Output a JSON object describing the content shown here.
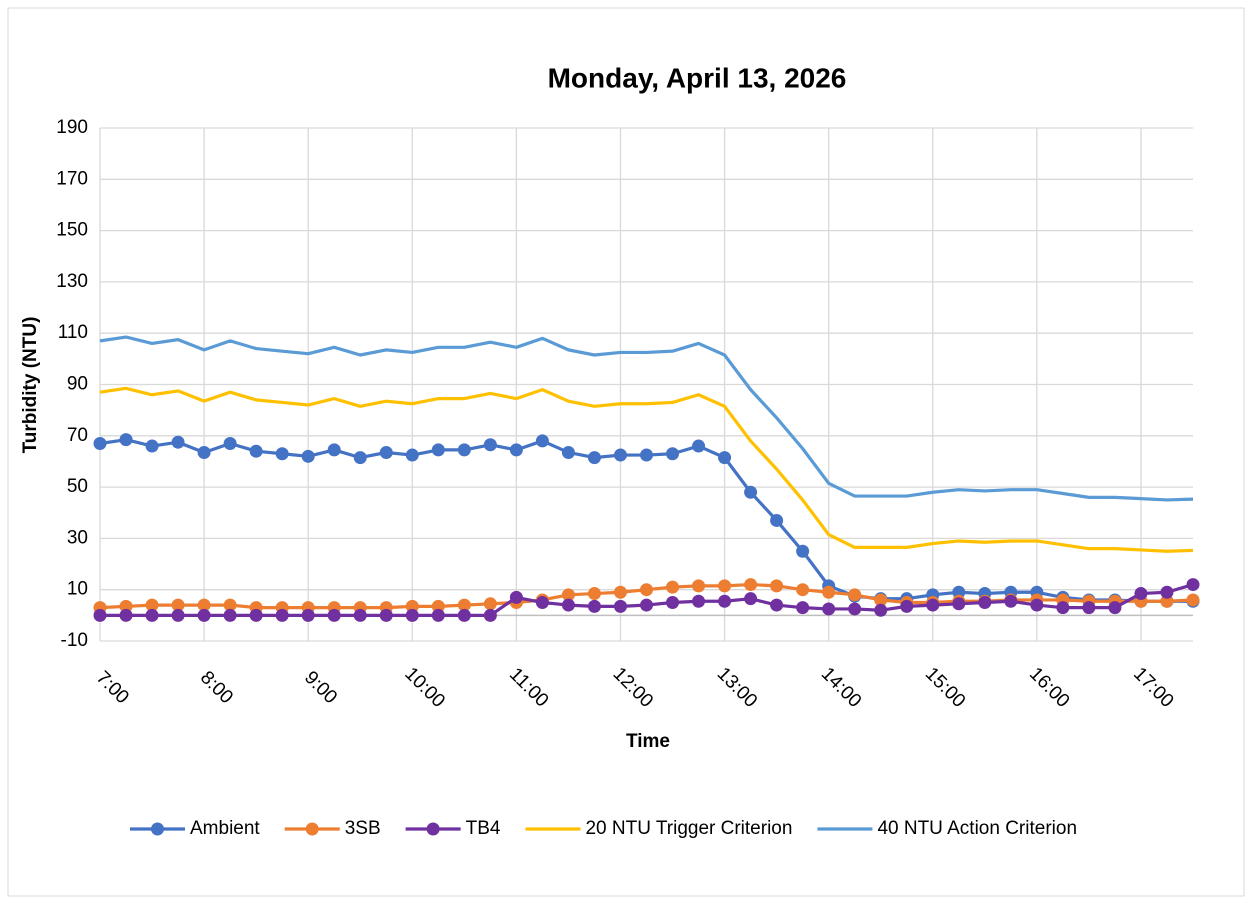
{
  "chart_data": {
    "type": "line",
    "title": "Monday, April 13, 2026",
    "x_label": "Time",
    "y_label": "Turbidity (NTU)",
    "categories": [
      "7:00",
      null,
      null,
      null,
      "8:00",
      null,
      null,
      null,
      "9:00",
      null,
      null,
      null,
      "10:00",
      null,
      null,
      null,
      "11:00",
      null,
      null,
      null,
      "12:00",
      null,
      null,
      null,
      "13:00",
      null,
      null,
      null,
      "14:00",
      null,
      null,
      null,
      "15:00",
      null,
      null,
      null,
      "16:00",
      null,
      null,
      null,
      "17:00",
      null,
      null
    ],
    "ylim": [
      -10,
      190
    ],
    "yticks": [
      -10,
      10,
      30,
      50,
      70,
      90,
      110,
      130,
      150,
      170,
      190
    ],
    "grid": true,
    "legend": "bottom",
    "series": [
      {
        "name": "Ambient",
        "color": "#4472c4",
        "markers": true,
        "values": [
          67,
          68.5,
          66,
          67.5,
          63.5,
          67,
          64,
          63,
          62,
          64.5,
          61.5,
          63.5,
          62.5,
          64.5,
          64.5,
          66.5,
          64.5,
          68,
          63.5,
          61.5,
          62.5,
          62.5,
          63,
          66,
          61.5,
          48,
          37,
          25,
          11.5,
          7.5,
          6.5,
          6.5,
          8,
          9,
          8.5,
          9,
          9,
          7,
          6,
          6,
          5.5,
          5.5,
          5.5
        ]
      },
      {
        "name": "3SB",
        "color": "#ed7d31",
        "markers": true,
        "values": [
          3,
          3.5,
          4,
          4,
          4,
          4,
          3,
          3,
          3,
          3,
          3,
          3,
          3.5,
          3.5,
          4,
          4.5,
          5,
          6,
          8,
          8.5,
          9,
          10,
          11,
          11.5,
          11.5,
          12,
          11.5,
          10,
          9,
          8,
          6,
          5,
          5,
          5.5,
          5.5,
          6,
          6,
          6,
          5.5,
          5.5,
          5.5,
          5.5,
          6
        ]
      },
      {
        "name": "TB4",
        "color": "#7030a0",
        "markers": true,
        "values": [
          0,
          0,
          0,
          0,
          0,
          0,
          0,
          0,
          0,
          0,
          0,
          0,
          0,
          0,
          0,
          0,
          7,
          5,
          4,
          3.5,
          3.5,
          4,
          5,
          5.5,
          5.5,
          6.5,
          4,
          3,
          2.5,
          2.5,
          2,
          3.5,
          4,
          4.5,
          5,
          5.5,
          4,
          3,
          3,
          3,
          8.5,
          9,
          12
        ]
      },
      {
        "name": "20 NTU Trigger Criterion",
        "color": "#ffc000",
        "markers": false,
        "values": [
          87,
          88.5,
          86,
          87.5,
          83.5,
          87,
          84,
          83,
          82,
          84.5,
          81.5,
          83.5,
          82.5,
          84.5,
          84.5,
          86.5,
          84.5,
          88,
          83.5,
          81.5,
          82.5,
          82.5,
          83,
          86,
          81.5,
          68,
          57,
          45,
          31.5,
          26.5,
          26.5,
          26.5,
          28,
          29,
          28.5,
          29,
          29,
          27.5,
          26,
          26,
          25.5,
          25,
          25.3
        ]
      },
      {
        "name": "40 NTU Action Criterion",
        "color": "#5b9bd5",
        "markers": false,
        "values": [
          107,
          108.5,
          106,
          107.5,
          103.5,
          107,
          104,
          103,
          102,
          104.5,
          101.5,
          103.5,
          102.5,
          104.5,
          104.5,
          106.5,
          104.5,
          108,
          103.5,
          101.5,
          102.5,
          102.5,
          103,
          106,
          101.5,
          88,
          77,
          65,
          51.5,
          46.5,
          46.5,
          46.5,
          48,
          49,
          48.5,
          49,
          49,
          47.5,
          46,
          46,
          45.5,
          45,
          45.3
        ]
      }
    ]
  }
}
